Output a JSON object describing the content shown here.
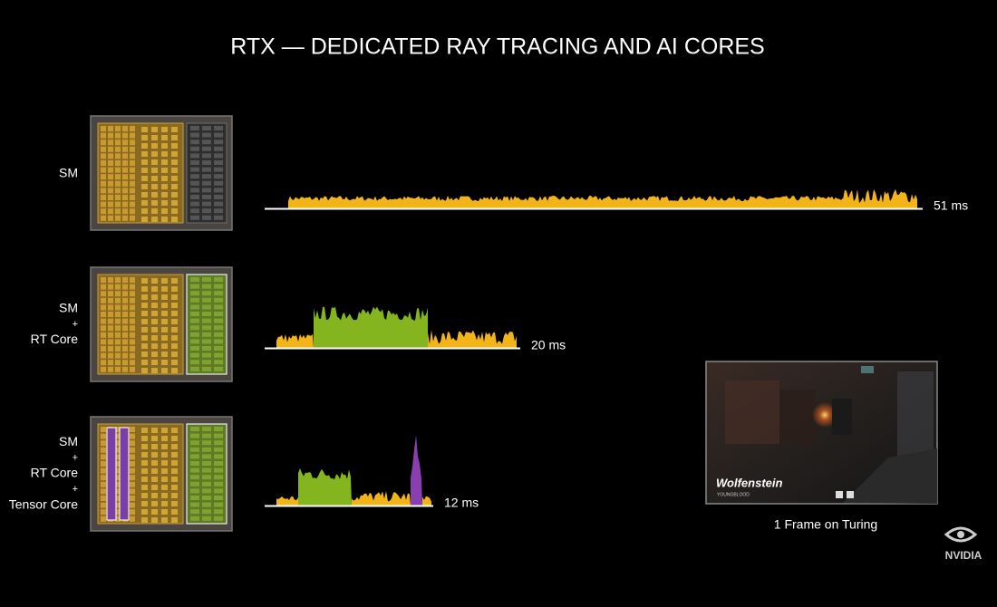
{
  "title": "RTX — DEDICATED RAY TRACING AND AI CORES",
  "rows": [
    {
      "label": [
        "SM"
      ],
      "time": "51 ms"
    },
    {
      "label": [
        "SM",
        "+",
        "RT Core"
      ],
      "time": "20 ms"
    },
    {
      "label": [
        "SM",
        "+",
        "RT Core",
        "+",
        "Tensor Core"
      ],
      "time": "12 ms"
    }
  ],
  "game": {
    "logo": "Wolfenstein",
    "sublogo": "YOUNGBLOOD",
    "caption": "1 Frame on Turing"
  },
  "brand": "NVIDIA"
}
